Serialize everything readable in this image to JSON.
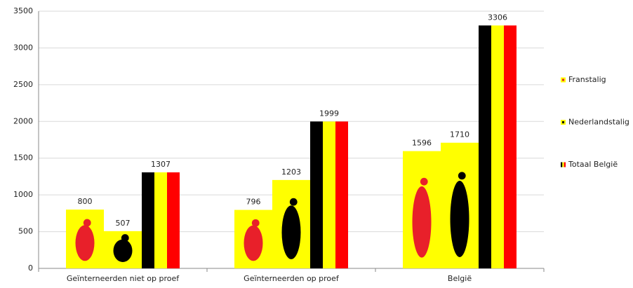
{
  "chart_data": {
    "type": "bar",
    "categories": [
      "Geïnterneerden niet op proef",
      "Geïnterneerden op proef",
      "België"
    ],
    "series": [
      {
        "name": "Franstalig",
        "color": "#ffff00",
        "emblem_color": "#e8202a",
        "values": [
          800,
          796,
          1596
        ]
      },
      {
        "name": "Nederlandstalig",
        "color": "#ffff00",
        "emblem_color": "#000000",
        "values": [
          507,
          1203,
          1710
        ]
      },
      {
        "name": "Totaal België",
        "color": [
          "#000000",
          "#ffff00",
          "#ff0000"
        ],
        "values": [
          1307,
          1999,
          3306
        ]
      }
    ],
    "ylim": [
      0,
      3500
    ],
    "yticks": [
      0,
      500,
      1000,
      1500,
      2000,
      2500,
      3000,
      3500
    ],
    "grid": true,
    "data_labels": true,
    "legend": "right"
  }
}
